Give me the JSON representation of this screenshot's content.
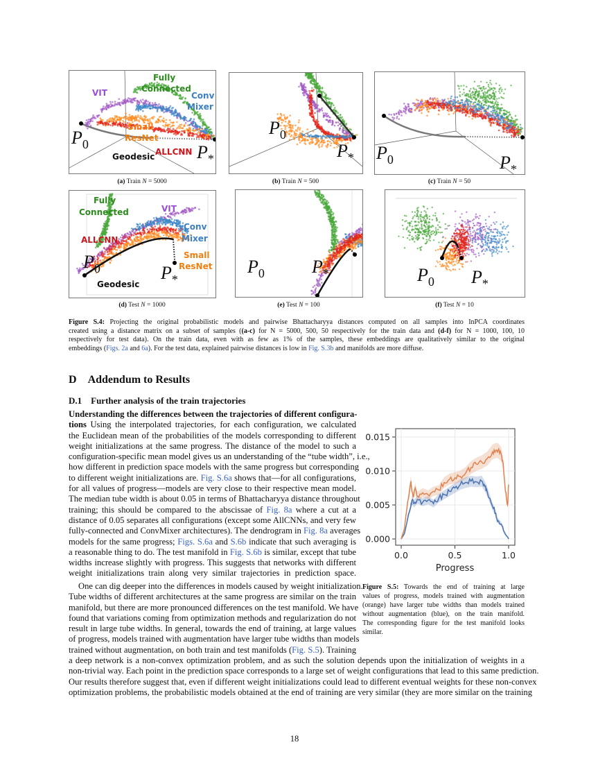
{
  "colors": {
    "green": "#4aa83c",
    "purple": "#a35bc4",
    "blue": "#3a86c8",
    "orange": "#ff8a1f",
    "red": "#e3261b",
    "link": "#3a63c8"
  },
  "label_colors": {
    "green": "#2e8b1e",
    "purple": "#9a4fd6",
    "blue": "#3b7fc4",
    "orange": "#f07f10",
    "red": "#c8171e",
    "black": "#111111"
  },
  "figure_s4": {
    "panels": [
      {
        "id": "a",
        "tag": "(a)",
        "text": "Train",
        "N": "5000"
      },
      {
        "id": "b",
        "tag": "(b)",
        "text": "Train",
        "N": "500"
      },
      {
        "id": "c",
        "tag": "(c)",
        "text": "Train",
        "N": "50"
      },
      {
        "id": "d",
        "tag": "(d)",
        "text": "Test",
        "N": "1000"
      },
      {
        "id": "e",
        "tag": "(e)",
        "text": "Test",
        "N": "100"
      },
      {
        "id": "f",
        "tag": "(f)",
        "text": "Test",
        "N": "10"
      }
    ],
    "labels": {
      "vit": "VIT",
      "fully": "Fully",
      "connected": "Connected",
      "conv": "Conv",
      "mixer": "Mixer",
      "small": "Small",
      "resnet": "ResNet",
      "allcnn": "ALLCNN",
      "geodesic": "Geodesic",
      "p": "P",
      "p0_sub": "0",
      "pstar_sub": "*"
    },
    "caption": [
      [
        {
          "t": "Figure S.4:",
          "s": "b"
        },
        {
          "t": " Projecting the original probabilistic models and pairwise Bhattacharyya distances computed on all samples into InPCA coordinates"
        }
      ],
      [
        {
          "t": "created using a distance matrix on a subset of samples ("
        },
        {
          "t": "(a-c)",
          "s": "b"
        },
        {
          "t": " for N = 5000, 500, 50 respectively for the train data and "
        },
        {
          "t": "(d-f)",
          "s": "b"
        },
        {
          "t": " for N = 1000, 100, 10"
        }
      ],
      [
        {
          "t": "respectively for test data). On the train data, even with as few as 1% of the samples, these embeddings are qualitatively similar to the original"
        }
      ],
      [
        {
          "t": "embeddings ("
        },
        {
          "t": "Figs. 2a",
          "s": "link"
        },
        {
          "t": " and "
        },
        {
          "t": "6a",
          "s": "link"
        },
        {
          "t": "). For the test data, explained pairwise distances is low in "
        },
        {
          "t": "Fig. S.3b",
          "s": "link"
        },
        {
          "t": " and manifolds are more diffuse."
        }
      ]
    ]
  },
  "section": {
    "number": "D",
    "title": "Addendum to Results"
  },
  "subsection": {
    "number": "D.1",
    "title": "Further analysis of the train trajectories"
  },
  "paragraph1": [
    [
      {
        "t": "Understanding the differences between the trajectories of different configura-",
        "s": "b"
      }
    ],
    [
      {
        "t": "tions",
        "s": "b"
      },
      {
        "t": "   Using the interpolated trajectories, for each configuration, we calculated"
      }
    ],
    [
      {
        "t": "the Euclidean mean of the probabilities of the models corresponding to different"
      }
    ],
    [
      {
        "t": "weight initializations at the same progress. The distance of the model to such a"
      }
    ],
    [
      {
        "t": "configuration-specific mean model gives us an understanding of the “tube width”, i.e.,"
      }
    ],
    [
      {
        "t": "how different in prediction space models with the same progress but corresponding"
      }
    ],
    [
      {
        "t": "to different weight initializations are. "
      },
      {
        "t": "Fig. S.6a",
        "s": "link"
      },
      {
        "t": " shows that—for all configurations,"
      }
    ],
    [
      {
        "t": "for all values of progress—models are very close to their respective mean model."
      }
    ],
    [
      {
        "t": "The median tube width is about 0.05 in terms of Bhattacharyya distance throughout"
      }
    ],
    [
      {
        "t": "training; this should be compared to the abscissae of "
      },
      {
        "t": "Fig. 8a",
        "s": "link"
      },
      {
        "t": " where a cut at a"
      }
    ],
    [
      {
        "t": "distance of 0.05 separates all configurations (except some AllCNNs, and very few"
      }
    ],
    [
      {
        "t": "fully-connected and ConvMixer architectures). The dendrogram in "
      },
      {
        "t": "Fig. 8a",
        "s": "link"
      },
      {
        "t": " averages"
      }
    ],
    [
      {
        "t": "models for the same progress; "
      },
      {
        "t": "Figs. S.6a",
        "s": "link"
      },
      {
        "t": " and "
      },
      {
        "t": "S.6b",
        "s": "link"
      },
      {
        "t": " indicate that such averaging is"
      }
    ],
    [
      {
        "t": "a reasonable thing to do. The test manifold in "
      },
      {
        "t": "Fig. S.6b",
        "s": "link"
      },
      {
        "t": " is similar, except that tube"
      }
    ],
    [
      {
        "t": "widths increase slightly with progress. This suggests that networks with different"
      }
    ],
    [
      {
        "t": "weight initializations train along very similar trajectories in prediction space."
      }
    ]
  ],
  "paragraph2": [
    [
      {
        "t": "One can dig deeper into the differences in models caused by weight initialization."
      }
    ],
    [
      {
        "t": "Tube widths of different architectures at the same progress are similar on the train"
      }
    ],
    [
      {
        "t": "manifold, but there are more pronounced differences on the test manifold. We have"
      }
    ],
    [
      {
        "t": "found that variations coming from optimization methods and regularization do not"
      }
    ],
    [
      {
        "t": "result in large tube widths. In general, towards the end of training, at large values"
      }
    ],
    [
      {
        "t": "of progress, models trained with augmentation have larger tube widths than models"
      }
    ],
    [
      {
        "t": "trained without augmentation, on both train and test manifolds ("
      },
      {
        "t": "Fig. S.5",
        "s": "link"
      },
      {
        "t": "). Training"
      }
    ]
  ],
  "paragraph2_full": [
    [
      {
        "t": "a deep network is a non-convex optimization problem, and as such the solution depends upon the initialization of weights in a"
      }
    ],
    [
      {
        "t": "non-trivial way. Each point in the prediction space corresponds to a large set of weight configurations that lead to this same prediction."
      }
    ],
    [
      {
        "t": "Our results therefore suggest that, even if different weight initializations could lead to different eventual weights for these non-convex"
      }
    ],
    [
      {
        "t": "optimization problems, the probabilistic models obtained at the end of training are very similar (they are more similar on the training"
      }
    ]
  ],
  "figure_s5_caption": [
    [
      {
        "t": "Figure S.5:",
        "s": "b"
      },
      {
        "t": " Towards the end of training at large"
      }
    ],
    [
      {
        "t": "values of progress, models trained with augmentation"
      }
    ],
    [
      {
        "t": "(orange) have larger tube widths than models trained"
      }
    ],
    [
      {
        "t": "without augmentation (blue), on the train manifold."
      }
    ],
    [
      {
        "t": "The corresponding figure for the test manifold looks"
      }
    ],
    [
      {
        "t": "similar."
      }
    ]
  ],
  "chart_data": {
    "type": "line",
    "title": "",
    "xlabel": "Progress",
    "ylabel": "",
    "xlim": [
      -0.03,
      1.05
    ],
    "ylim": [
      -0.0005,
      0.0165
    ],
    "xticks": [
      "0.0",
      "0.5",
      "1.0"
    ],
    "xtick_values": [
      0,
      0.5,
      1.0
    ],
    "yticks": [
      "0.000",
      "0.005",
      "0.010",
      "0.015"
    ],
    "ytick_values": [
      0,
      0.005,
      0.01,
      0.015
    ],
    "grid": true,
    "series": [
      {
        "color": "#4c72b0",
        "x": [
          0,
          0.03,
          0.06,
          0.09,
          0.1,
          0.12,
          0.15,
          0.2,
          0.25,
          0.3,
          0.35,
          0.4,
          0.45,
          0.5,
          0.55,
          0.6,
          0.65,
          0.7,
          0.75,
          0.78,
          0.8,
          0.85,
          0.88,
          0.9,
          0.93,
          0.96,
          1.0
        ],
        "y": [
          0,
          0.0008,
          0.003,
          0.0048,
          0.0057,
          0.0052,
          0.0058,
          0.0054,
          0.0057,
          0.0052,
          0.006,
          0.0065,
          0.007,
          0.0075,
          0.008,
          0.0083,
          0.0085,
          0.0084,
          0.0085,
          0.0077,
          0.007,
          0.0048,
          0.0038,
          0.0027,
          0.0022,
          0.001,
          0
        ]
      },
      {
        "color": "#dd8452",
        "x": [
          0,
          0.03,
          0.06,
          0.09,
          0.11,
          0.13,
          0.15,
          0.2,
          0.25,
          0.3,
          0.35,
          0.4,
          0.45,
          0.5,
          0.55,
          0.6,
          0.65,
          0.7,
          0.75,
          0.8,
          0.85,
          0.88,
          0.9,
          0.93,
          0.95,
          0.97,
          0.99,
          1.0
        ],
        "y": [
          0,
          0.0015,
          0.0055,
          0.0085,
          0.0062,
          0.0075,
          0.0063,
          0.0068,
          0.0065,
          0.007,
          0.0072,
          0.0083,
          0.0088,
          0.009,
          0.0092,
          0.0097,
          0.0105,
          0.011,
          0.0113,
          0.0118,
          0.0128,
          0.013,
          0.013,
          0.0125,
          0.011,
          0.007,
          0.005,
          0.008
        ]
      }
    ]
  }
}
